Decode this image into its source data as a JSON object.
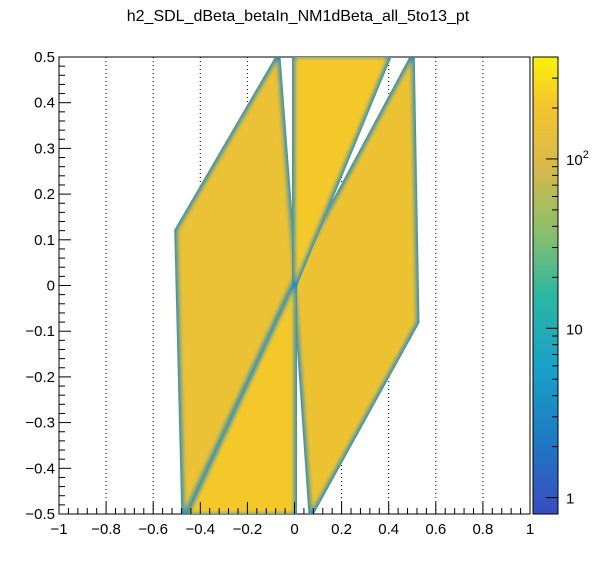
{
  "chart_data": {
    "type": "heatmap",
    "title": "h2_SDL_dBeta_betaIn_NM1dBeta_all_5to13_pt",
    "xlabel": "",
    "ylabel": "",
    "xlim": [
      -1,
      1
    ],
    "ylim": [
      -0.5,
      0.5
    ],
    "z_scale": "log",
    "zlim": [
      0.8,
      400
    ],
    "grid": "vertical dotted lines",
    "x_ticks": [
      "−1",
      "−0.8",
      "−0.6",
      "−0.4",
      "−0.2",
      "0",
      "0.2",
      "0.4",
      "0.6",
      "0.8",
      "1"
    ],
    "y_ticks": [
      "−0.5",
      "−0.4",
      "−0.3",
      "−0.2",
      "−0.1",
      "0",
      "0.1",
      "0.2",
      "0.3",
      "0.4",
      "0.5"
    ],
    "z_ticks": [
      {
        "value": 1,
        "label": "1"
      },
      {
        "value": 10,
        "label": "10"
      },
      {
        "value": 100,
        "label": "10",
        "sup": "2"
      }
    ],
    "regions": [
      {
        "name": "left parallelogram",
        "polygon": [
          [
            -0.5,
            0.12
          ],
          [
            -0.07,
            0.5
          ],
          [
            0.0,
            0.02
          ],
          [
            -0.47,
            -0.5
          ]
        ],
        "level": 160
      },
      {
        "name": "right parallelogram",
        "polygon": [
          [
            0.0,
            0.02
          ],
          [
            0.5,
            0.5
          ],
          [
            0.52,
            -0.08
          ],
          [
            0.07,
            -0.5
          ]
        ],
        "level": 170
      },
      {
        "name": "central upper wedge",
        "polygon": [
          [
            0.0,
            0.5
          ],
          [
            0.4,
            0.5
          ],
          [
            0.0,
            0.0
          ]
        ],
        "level": 220
      },
      {
        "name": "central lower wedge",
        "polygon": [
          [
            -0.45,
            -0.5
          ],
          [
            0.0,
            -0.5
          ],
          [
            0.0,
            0.0
          ]
        ],
        "level": 220
      }
    ]
  }
}
